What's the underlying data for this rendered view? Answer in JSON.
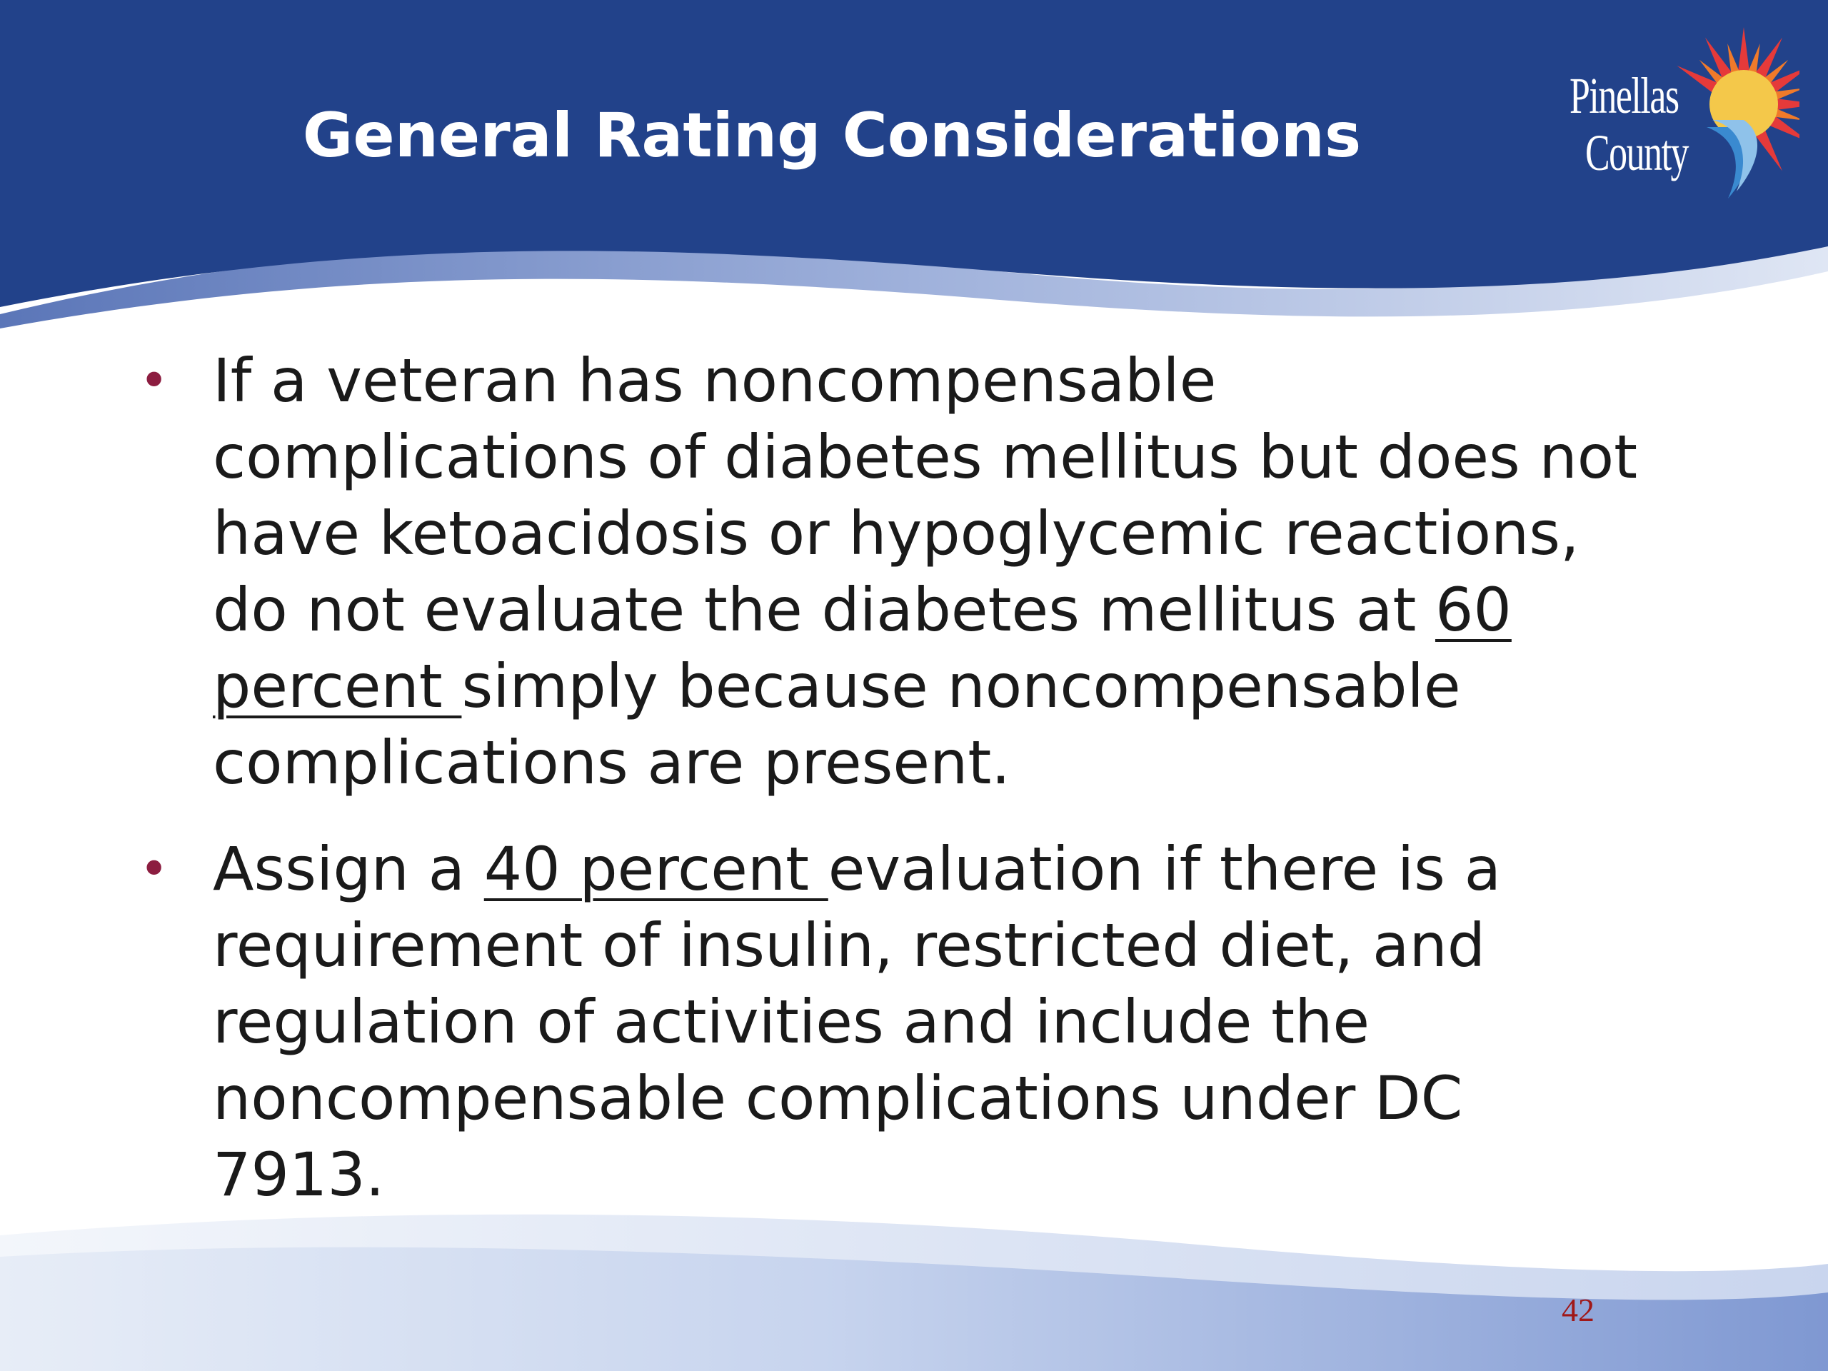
{
  "slide": {
    "title": "General Rating Considerations",
    "logo": {
      "line1": "Pinellas",
      "line2": "County",
      "icon": "sun-burst-logo-icon"
    },
    "bullets": [
      {
        "before": "If a veteran has noncompensable complications of diabetes mellitus but does not have ketoacidosis or hypoglycemic reactions, do not evaluate the diabetes mellitus at ",
        "emphasis": "60 percent ",
        "after": "simply because noncompensable complications are present."
      },
      {
        "before": "Assign a ",
        "emphasis": "40 percent ",
        "after": "evaluation if there is a requirement of insulin, restricted diet, and regulation of activities and include the noncompensable complications under DC 7913."
      }
    ],
    "bullet_glyph": "•",
    "page_number": "42",
    "colors": {
      "header_blue": "#22428a",
      "bullet_red": "#8c1d40",
      "page_number_red": "#a01818",
      "footer_blue": "#8aa2d6"
    }
  }
}
